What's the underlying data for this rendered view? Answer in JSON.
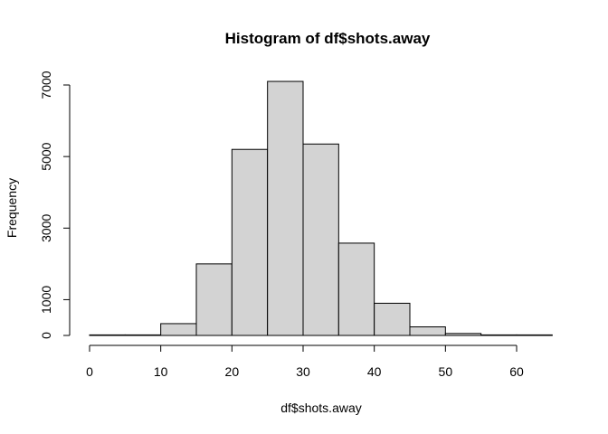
{
  "chart_data": {
    "type": "histogram",
    "title": "Histogram of df$shots.away",
    "xlabel": "df$shots.away",
    "ylabel": "Frequency",
    "bins": [
      {
        "start": 0,
        "end": 5,
        "count": 8
      },
      {
        "start": 5,
        "end": 10,
        "count": 15
      },
      {
        "start": 10,
        "end": 15,
        "count": 330
      },
      {
        "start": 15,
        "end": 20,
        "count": 2000
      },
      {
        "start": 20,
        "end": 25,
        "count": 5200
      },
      {
        "start": 25,
        "end": 30,
        "count": 7100
      },
      {
        "start": 30,
        "end": 35,
        "count": 5350
      },
      {
        "start": 35,
        "end": 40,
        "count": 2580
      },
      {
        "start": 40,
        "end": 45,
        "count": 900
      },
      {
        "start": 45,
        "end": 50,
        "count": 240
      },
      {
        "start": 50,
        "end": 55,
        "count": 55
      },
      {
        "start": 55,
        "end": 60,
        "count": 8
      },
      {
        "start": 60,
        "end": 65,
        "count": 2
      }
    ],
    "xlim": [
      0,
      65
    ],
    "ylim": [
      0,
      7100
    ],
    "x_ticks": [
      0,
      10,
      20,
      30,
      40,
      50,
      60
    ],
    "y_ticks": [
      0,
      1000,
      3000,
      5000,
      7000
    ],
    "bar_color": "#d3d3d3",
    "grid": false
  }
}
